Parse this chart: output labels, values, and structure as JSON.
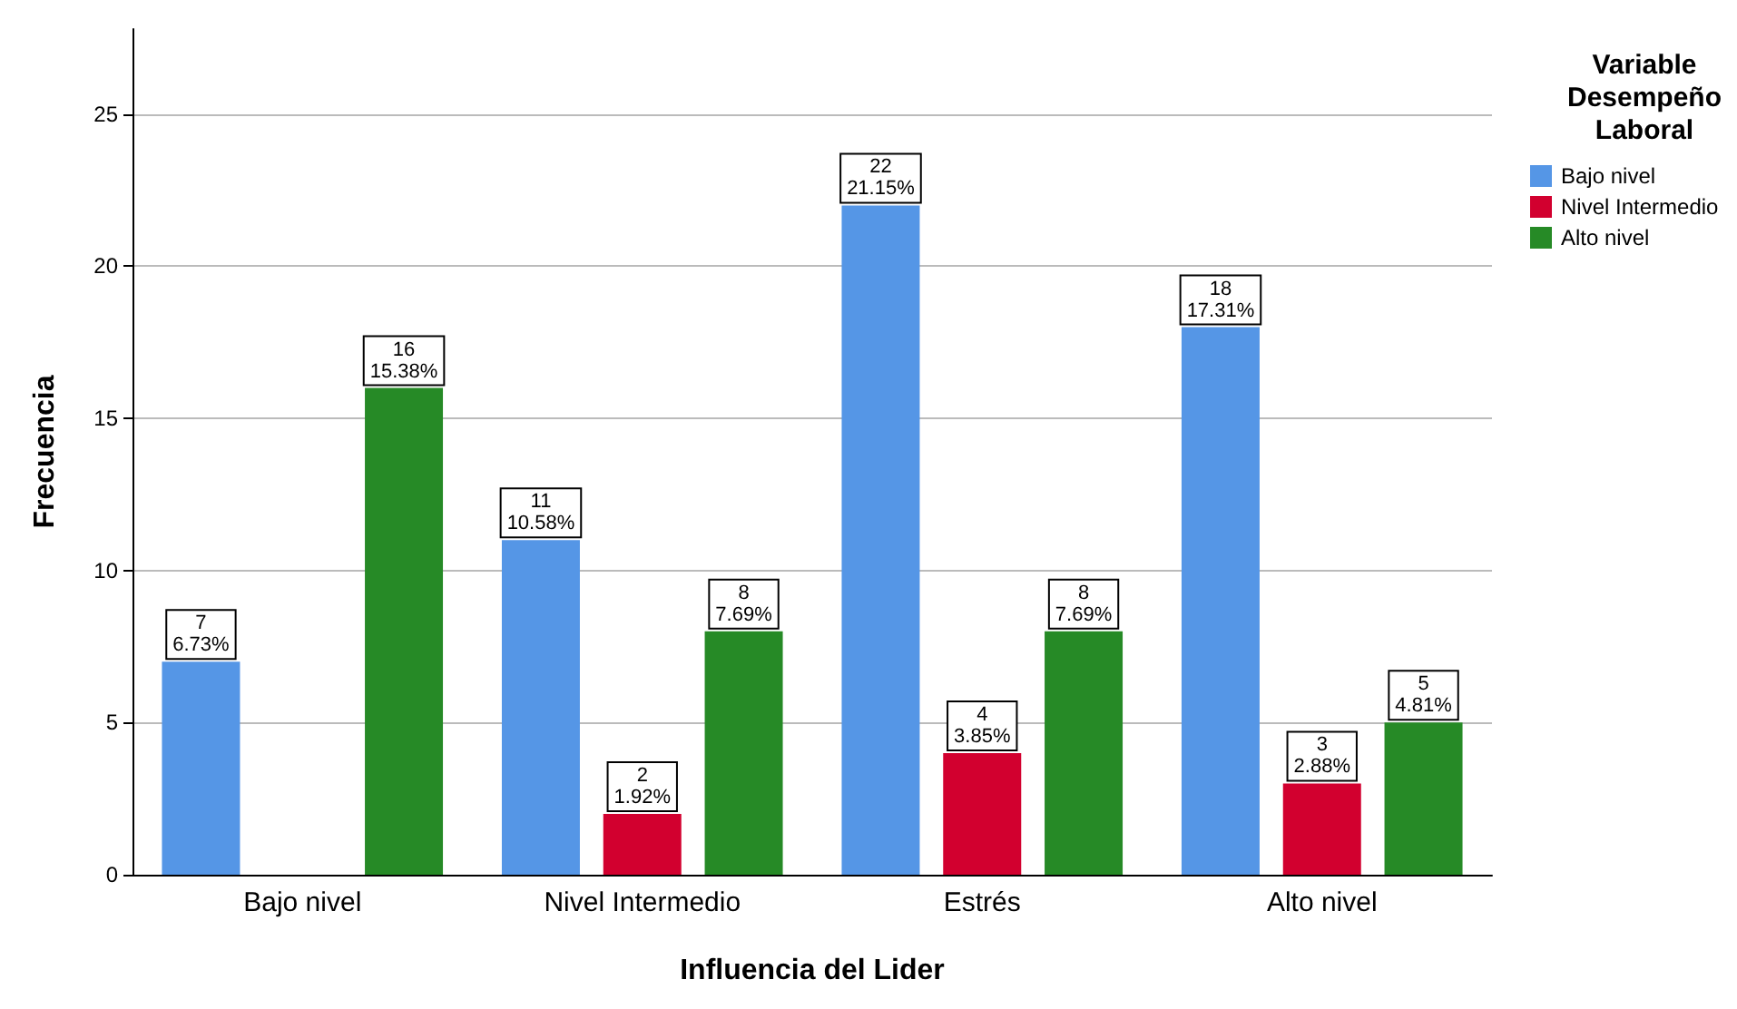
{
  "chart_data": {
    "type": "bar",
    "xlabel": "Influencia del Lider",
    "ylabel": "Frecuencia",
    "legend_title": "Variable\nDesempeño\nLaboral",
    "categories": [
      "Bajo nivel",
      "Nivel Intermedio",
      "Estrés",
      "Alto nivel"
    ],
    "series": [
      {
        "name": "Bajo nivel",
        "color": "#5596e6",
        "values": [
          7,
          11,
          22,
          18
        ],
        "value_labels": [
          "7\n6.73%",
          "11\n10.58%",
          "22\n21.15%",
          "18\n17.31%"
        ]
      },
      {
        "name": "Nivel Intermedio",
        "color": "#d2002f",
        "values": [
          null,
          2,
          4,
          3
        ],
        "value_labels": [
          null,
          "2\n1.92%",
          "4\n3.85%",
          "3\n2.88%"
        ]
      },
      {
        "name": "Alto nivel",
        "color": "#268a26",
        "values": [
          16,
          8,
          8,
          5
        ],
        "value_labels": [
          "16\n15.38%",
          "8\n7.69%",
          "8\n7.69%",
          "5\n4.81%"
        ]
      }
    ],
    "ylim": [
      0,
      27.8
    ],
    "yticks": [
      0,
      5,
      10,
      15,
      20,
      25
    ],
    "grid": "y",
    "legend": "top right"
  }
}
